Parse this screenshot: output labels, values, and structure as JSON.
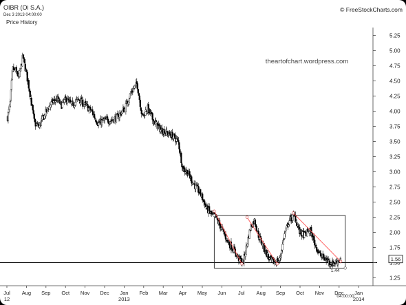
{
  "header": {
    "symbol_label": "OIBR (Oi S.A.)",
    "datetime": "Dec 3 2013 04:00:00",
    "panel_label": "Price History",
    "brand": "© FreeStockCharts.com"
  },
  "watermark": "theartofchart.wordpress.com",
  "chart_data": {
    "type": "candlestick",
    "ylim": [
      1.25,
      5.25
    ],
    "y_ticks": [
      "1.25",
      "1.50",
      "1.75",
      "2.00",
      "2.25",
      "2.50",
      "2.75",
      "3.00",
      "3.25",
      "3.50",
      "3.75",
      "4.00",
      "4.25",
      "4.50",
      "4.75",
      "5.00",
      "5.25"
    ],
    "x_ticks": [
      "Jul",
      "Aug",
      "Sep",
      "Oct",
      "Nov",
      "Dec",
      "Jan",
      "Feb",
      "Mar",
      "Apr",
      "May",
      "Jun",
      "Jul",
      "Aug",
      "Sep",
      "Oct",
      "Nov",
      "Dec",
      "Jan"
    ],
    "x_year_labels": [
      {
        "after_tick": "Jul",
        "index": 0,
        "label": "12"
      },
      {
        "after_tick": "Jan",
        "index": 6,
        "label": "2013"
      },
      {
        "after_tick": "Jan",
        "index": 18,
        "label": "2014"
      }
    ],
    "x_time_label": "04:00:00",
    "last_price": 1.56,
    "last_price_label": "1.56",
    "support_level": 1.5,
    "low_annotation": {
      "label": "1.44",
      "date": "2013-11-20",
      "value": 1.44
    },
    "rectangle": {
      "start": "2013-05-20",
      "end": "2013-12-10",
      "top": 2.28,
      "bottom": 1.41
    },
    "trendlines": [
      {
        "from_date": "2013-05-20",
        "from": 2.35,
        "to_date": "2013-07-02",
        "to": 1.48
      },
      {
        "from_date": "2013-07-10",
        "from": 2.25,
        "to_date": "2013-08-26",
        "to": 1.48
      },
      {
        "from_date": "2013-09-20",
        "from": 2.32,
        "to_date": "2013-12-03",
        "to": 1.52
      }
    ],
    "price_path": [
      [
        "2012-07-02",
        3.9
      ],
      [
        "2012-07-06",
        4.1
      ],
      [
        "2012-07-10",
        4.7
      ],
      [
        "2012-07-16",
        4.65
      ],
      [
        "2012-07-20",
        4.55
      ],
      [
        "2012-07-26",
        4.9
      ],
      [
        "2012-07-31",
        4.65
      ],
      [
        "2012-08-06",
        4.3
      ],
      [
        "2012-08-13",
        3.8
      ],
      [
        "2012-08-20",
        3.75
      ],
      [
        "2012-08-27",
        3.9
      ],
      [
        "2012-09-03",
        4.05
      ],
      [
        "2012-09-10",
        4.15
      ],
      [
        "2012-09-17",
        4.2
      ],
      [
        "2012-09-24",
        4.1
      ],
      [
        "2012-10-01",
        4.2
      ],
      [
        "2012-10-10",
        4.1
      ],
      [
        "2012-10-20",
        4.2
      ],
      [
        "2012-10-31",
        4.1
      ],
      [
        "2012-11-10",
        4.0
      ],
      [
        "2012-11-20",
        3.8
      ],
      [
        "2012-12-01",
        3.85
      ],
      [
        "2012-12-10",
        3.85
      ],
      [
        "2012-12-20",
        3.9
      ],
      [
        "2013-01-01",
        4.05
      ],
      [
        "2013-01-10",
        4.3
      ],
      [
        "2013-01-20",
        4.45
      ],
      [
        "2013-01-28",
        3.9
      ],
      [
        "2013-02-05",
        4.05
      ],
      [
        "2013-02-14",
        3.85
      ],
      [
        "2013-02-25",
        3.7
      ],
      [
        "2013-03-05",
        3.65
      ],
      [
        "2013-03-15",
        3.6
      ],
      [
        "2013-03-25",
        3.5
      ],
      [
        "2013-04-01",
        3.05
      ],
      [
        "2013-04-08",
        3.0
      ],
      [
        "2013-04-18",
        2.8
      ],
      [
        "2013-04-28",
        2.65
      ],
      [
        "2013-05-08",
        2.4
      ],
      [
        "2013-05-15",
        2.3
      ],
      [
        "2013-05-22",
        2.25
      ],
      [
        "2013-06-01",
        2.05
      ],
      [
        "2013-06-10",
        1.85
      ],
      [
        "2013-06-20",
        1.7
      ],
      [
        "2013-06-28",
        1.55
      ],
      [
        "2013-07-04",
        1.5
      ],
      [
        "2013-07-10",
        1.8
      ],
      [
        "2013-07-16",
        2.1
      ],
      [
        "2013-07-22",
        2.2
      ],
      [
        "2013-07-28",
        1.95
      ],
      [
        "2013-08-05",
        1.75
      ],
      [
        "2013-08-14",
        1.55
      ],
      [
        "2013-08-22",
        1.5
      ],
      [
        "2013-08-30",
        1.55
      ],
      [
        "2013-09-06",
        1.95
      ],
      [
        "2013-09-14",
        2.2
      ],
      [
        "2013-09-22",
        2.28
      ],
      [
        "2013-09-30",
        2.0
      ],
      [
        "2013-10-08",
        1.95
      ],
      [
        "2013-10-16",
        2.05
      ],
      [
        "2013-10-24",
        1.8
      ],
      [
        "2013-11-01",
        1.62
      ],
      [
        "2013-11-10",
        1.55
      ],
      [
        "2013-11-20",
        1.48
      ],
      [
        "2013-11-27",
        1.52
      ],
      [
        "2013-12-03",
        1.56
      ]
    ]
  }
}
